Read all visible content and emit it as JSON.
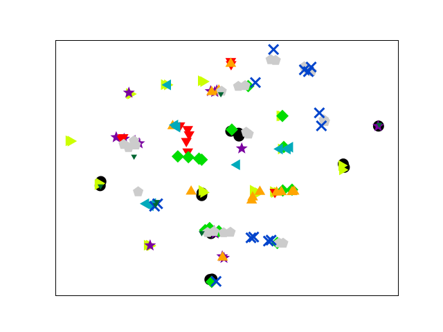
{
  "chart_data": {
    "type": "scatter",
    "title": "",
    "xlabel": "",
    "ylabel": "",
    "xlim": [
      0,
      100
    ],
    "ylim": [
      0,
      100
    ],
    "grid": false,
    "legend": "none",
    "ticks": "hidden",
    "series": [
      {
        "color": "#000000",
        "marker": "circle",
        "points": [
          [
            12.9,
            43.1
          ],
          [
            13.1,
            44.7
          ],
          [
            42.7,
            40.2
          ],
          [
            42.6,
            39.2
          ],
          [
            51.1,
            64.5
          ],
          [
            53.4,
            63.7
          ],
          [
            53.5,
            62.6
          ],
          [
            84.3,
            50.3
          ],
          [
            84.0,
            51.6
          ],
          [
            94.3,
            66.5
          ],
          [
            45.6,
            25.0
          ],
          [
            45.3,
            24.3
          ],
          [
            45.6,
            6.4
          ],
          [
            45.0,
            6.2
          ]
        ]
      },
      {
        "color": "#ccff00",
        "marker": "triangle-right",
        "points": [
          [
            21.4,
            79.3
          ],
          [
            21.8,
            79.1
          ],
          [
            3.7,
            60.7
          ],
          [
            4.3,
            60.6
          ],
          [
            12.6,
            44.0
          ],
          [
            12.2,
            43.5
          ],
          [
            31.6,
            82.8
          ],
          [
            32.5,
            82.7
          ],
          [
            42.4,
            84.3
          ],
          [
            43.1,
            84.0
          ],
          [
            42.6,
            41.2
          ],
          [
            43.1,
            40.4
          ],
          [
            57.6,
            41.3
          ],
          [
            57.7,
            40.6
          ],
          [
            59.1,
            40.3
          ],
          [
            63.5,
            40.8
          ],
          [
            63.8,
            40.4
          ],
          [
            64.6,
            40.5
          ],
          [
            65.4,
            70.5
          ],
          [
            65.8,
            70.5
          ],
          [
            65.8,
            57.5
          ],
          [
            83.5,
            51.0
          ],
          [
            83.7,
            49.3
          ],
          [
            27.2,
            19.7
          ],
          [
            27.5,
            19.5
          ],
          [
            26.6,
            19.7
          ]
        ]
      },
      {
        "color": "#7a00a0",
        "marker": "star",
        "points": [
          [
            17.6,
            62.1
          ],
          [
            19.9,
            61.5
          ],
          [
            23.1,
            60.7
          ],
          [
            24.3,
            59.7
          ],
          [
            45.2,
            80.2
          ],
          [
            46.4,
            79.9
          ],
          [
            47.0,
            80.5
          ],
          [
            54.3,
            57.7
          ],
          [
            46.5,
            24.3
          ],
          [
            46.3,
            25.2
          ],
          [
            48.6,
            15.3
          ],
          [
            49.1,
            14.7
          ],
          [
            94.2,
            66.5
          ],
          [
            21.3,
            79.6
          ],
          [
            27.5,
            19.6
          ]
        ]
      },
      {
        "color": "#ff0000",
        "marker": "triangle-down",
        "points": [
          [
            51.1,
            92.0
          ],
          [
            51.2,
            90.8
          ],
          [
            19.3,
            61.5
          ],
          [
            19.6,
            62.1
          ],
          [
            38.5,
            65.3
          ],
          [
            38.9,
            63.2
          ],
          [
            38.1,
            60.6
          ],
          [
            38.5,
            56.5
          ],
          [
            36.2,
            66.7
          ],
          [
            64.0,
            40.6
          ]
        ]
      },
      {
        "color": "#00dd00",
        "marker": "diamond",
        "points": [
          [
            35.6,
            54.6
          ],
          [
            38.7,
            54.3
          ],
          [
            41.8,
            53.7
          ],
          [
            42.6,
            53.3
          ],
          [
            51.4,
            65.1
          ],
          [
            56.2,
            82.2
          ],
          [
            66.2,
            70.5
          ],
          [
            66.6,
            58.3
          ],
          [
            69.0,
            41.5
          ],
          [
            66.3,
            41.2
          ],
          [
            43.6,
            25.6
          ],
          [
            44.9,
            26.4
          ],
          [
            47.6,
            25.2
          ],
          [
            64.7,
            20.6
          ],
          [
            45.5,
            5.3
          ]
        ]
      },
      {
        "color": "#ffa500",
        "marker": "triangle-up",
        "points": [
          [
            51.1,
            91.0
          ],
          [
            45.5,
            79.9
          ],
          [
            47.6,
            80.5
          ],
          [
            57.2,
            37.3
          ],
          [
            57.5,
            38.5
          ],
          [
            59.6,
            40.7
          ],
          [
            64.5,
            40.4
          ],
          [
            65.9,
            40.6
          ],
          [
            69.0,
            40.6
          ],
          [
            69.6,
            40.8
          ],
          [
            48.7,
            14.9
          ],
          [
            34.1,
            66.5
          ],
          [
            39.5,
            40.8
          ]
        ]
      },
      {
        "color": "#00aabb",
        "marker": "triangle-left",
        "points": [
          [
            34.8,
            66.9
          ],
          [
            35.4,
            66.1
          ],
          [
            32.7,
            82.7
          ],
          [
            52.9,
            51.3
          ],
          [
            65.4,
            57.5
          ],
          [
            67.7,
            57.5
          ],
          [
            68.4,
            58.2
          ],
          [
            26.3,
            36.0
          ],
          [
            28.3,
            36.1
          ],
          [
            27.6,
            35.2
          ]
        ]
      },
      {
        "color": "#cccccc",
        "marker": "pentagon",
        "points": [
          [
            48.4,
            80.2
          ],
          [
            53.3,
            82.1
          ],
          [
            55.3,
            82.4
          ],
          [
            55.6,
            64.1
          ],
          [
            56.3,
            63.4
          ],
          [
            62.8,
            92.6
          ],
          [
            64.2,
            92.3
          ],
          [
            72.6,
            89.8
          ],
          [
            73.5,
            88.9
          ],
          [
            74.7,
            87.9
          ],
          [
            78.3,
            69.0
          ],
          [
            78.6,
            68.3
          ],
          [
            19.8,
            59.3
          ],
          [
            21.2,
            58.1
          ],
          [
            22.8,
            60.7
          ],
          [
            23.3,
            59.1
          ],
          [
            44.3,
            24.7
          ],
          [
            46.2,
            25.1
          ],
          [
            49.0,
            24.6
          ],
          [
            51.0,
            24.8
          ],
          [
            65.2,
            20.6
          ],
          [
            66.4,
            20.5
          ],
          [
            24.0,
            40.7
          ]
        ]
      },
      {
        "color": "#0044cc",
        "marker": "x",
        "points": [
          [
            57.0,
            22.6
          ],
          [
            57.8,
            22.9
          ],
          [
            62.1,
            21.3
          ],
          [
            62.9,
            21.7
          ],
          [
            28.8,
            35.0
          ],
          [
            29.7,
            36.0
          ],
          [
            58.3,
            83.6
          ],
          [
            63.6,
            96.6
          ],
          [
            72.6,
            88.6
          ],
          [
            74.6,
            89.7
          ],
          [
            73.8,
            87.9
          ],
          [
            77.6,
            66.6
          ],
          [
            77.0,
            71.7
          ],
          [
            46.8,
            5.5
          ]
        ]
      },
      {
        "color": "#006633",
        "marker": "triangle-down-small",
        "points": [
          [
            94.5,
            67.1
          ],
          [
            29.1,
            35.6
          ],
          [
            29.5,
            36.8
          ],
          [
            22.8,
            54.6
          ],
          [
            48.2,
            79.1
          ],
          [
            13.0,
            42.9
          ],
          [
            42.6,
            24.5
          ]
        ]
      }
    ]
  }
}
